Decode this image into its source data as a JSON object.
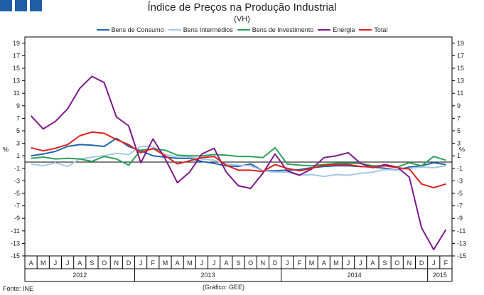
{
  "title": "Índice de Preços na Produção Industrial",
  "subtitle": "(VH)",
  "source": "Fonte: INE",
  "credit": "(Gráfico: GEE)",
  "colors": {
    "logo": "#1f5fa8"
  },
  "chart_data": {
    "type": "line",
    "title": "Índice de Preços na Produção Industrial",
    "ylabel": "%",
    "ylim": [
      -15,
      20
    ],
    "yticks": [
      19,
      17,
      15,
      13,
      11,
      9,
      7,
      5,
      3,
      1,
      -1,
      -3,
      -5,
      -7,
      -9,
      -11,
      -13,
      -15
    ],
    "categories": [
      "A",
      "M",
      "J",
      "J",
      "A",
      "S",
      "O",
      "N",
      "D",
      "J",
      "F",
      "M",
      "A",
      "M",
      "J",
      "J",
      "A",
      "S",
      "O",
      "N",
      "D",
      "J",
      "F",
      "M",
      "A",
      "M",
      "J",
      "J",
      "A",
      "S",
      "O",
      "N",
      "D",
      "J",
      "F"
    ],
    "years": [
      {
        "label": "2012",
        "start": 0,
        "end": 8
      },
      {
        "label": "2013",
        "start": 9,
        "end": 20
      },
      {
        "label": "2014",
        "start": 21,
        "end": 32
      },
      {
        "label": "2015",
        "start": 33,
        "end": 34
      }
    ],
    "legend_position": "top",
    "series": [
      {
        "name": "Bens de Consumo",
        "color": "#2166ac",
        "values": [
          1.0,
          1.3,
          1.7,
          2.5,
          2.8,
          2.7,
          2.5,
          3.8,
          2.5,
          1.8,
          1.0,
          0.8,
          0.6,
          0.6,
          0.1,
          -0.2,
          -0.6,
          -0.7,
          -0.3,
          -1.4,
          -1.4,
          -1.3,
          -1.2,
          -0.9,
          -0.7,
          -0.6,
          -0.6,
          -0.7,
          -0.8,
          -1.0,
          -1.3,
          -0.8,
          -0.6,
          -0.1,
          -0.4
        ]
      },
      {
        "name": "Bens Intermédios",
        "color": "#a6c8e6",
        "values": [
          -0.3,
          -0.6,
          -0.1,
          -0.7,
          0.5,
          0.8,
          1.0,
          1.4,
          1.2,
          2.5,
          2.5,
          1.2,
          0.8,
          0.8,
          0.5,
          0.3,
          -0.3,
          -0.5,
          -0.6,
          -1.4,
          -1.6,
          -1.6,
          -2.1,
          -2.0,
          -2.3,
          -2.0,
          -2.1,
          -1.8,
          -1.6,
          -1.2,
          -1.3,
          -1.0,
          -0.8,
          -0.9,
          -0.6
        ]
      },
      {
        "name": "Bens de Investimento",
        "color": "#2ca05a",
        "values": [
          0.6,
          0.8,
          0.5,
          0.6,
          0.5,
          0.1,
          0.9,
          0.5,
          -0.5,
          1.9,
          2.1,
          1.9,
          1.1,
          1.0,
          1.0,
          1.2,
          1.1,
          0.9,
          0.9,
          0.7,
          2.3,
          -0.3,
          -0.5,
          -0.6,
          -0.4,
          -0.2,
          -0.2,
          -0.2,
          -0.6,
          -0.6,
          -0.8,
          -0.1,
          -0.6,
          0.9,
          0.3
        ]
      },
      {
        "name": "Energia",
        "color": "#7b1a8a",
        "values": [
          7.4,
          5.3,
          6.5,
          8.5,
          11.8,
          13.7,
          12.7,
          7.2,
          5.8,
          -0.1,
          3.7,
          0.5,
          -3.3,
          -1.6,
          1.3,
          2.2,
          -1.6,
          -3.8,
          -4.2,
          -1.8,
          1.3,
          -1.4,
          -2.1,
          -1.1,
          0.7,
          1.0,
          1.5,
          -0.2,
          -0.9,
          -0.4,
          -0.8,
          -2.4,
          -10.5,
          -14.0,
          -10.8
        ]
      },
      {
        "name": "Total",
        "color": "#e02020",
        "values": [
          2.3,
          1.8,
          2.2,
          2.8,
          4.2,
          4.8,
          4.6,
          3.6,
          2.8,
          1.5,
          2.2,
          1.0,
          -0.3,
          0.2,
          0.7,
          0.9,
          -0.5,
          -1.3,
          -1.3,
          -1.5,
          -0.4,
          -1.0,
          -1.4,
          -1.0,
          -0.5,
          -0.4,
          -0.4,
          -0.7,
          -0.8,
          -0.6,
          -0.9,
          -1.1,
          -3.5,
          -4.1,
          -3.5
        ]
      }
    ]
  }
}
